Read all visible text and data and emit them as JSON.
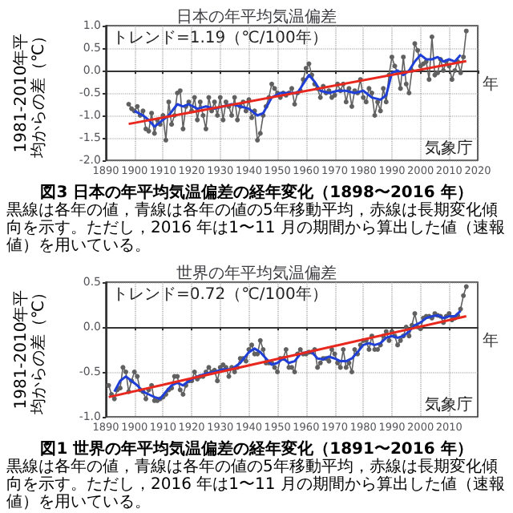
{
  "chart_data": [
    {
      "type": "line",
      "title": "日本の年平均気温偏差",
      "xlabel": "年",
      "ylabel": "1981-2010年平均からの差（℃）",
      "xlim": [
        1890,
        2020
      ],
      "xticks": [
        1890,
        1900,
        1910,
        1920,
        1930,
        1940,
        1950,
        1960,
        1970,
        1980,
        1990,
        2000,
        2010,
        2020
      ],
      "ylim": [
        -2,
        1
      ],
      "yticks": [
        {
          "value": -2,
          "label": "-2.0"
        },
        {
          "value": -1.5,
          "label": "-1.5"
        },
        {
          "value": -1,
          "label": "-1.0"
        },
        {
          "value": -0.5,
          "label": "-0.5"
        },
        {
          "value": 0,
          "label": "0.0"
        },
        {
          "value": 0.5,
          "label": "0.5"
        },
        {
          "value": 1,
          "label": "1.0"
        }
      ],
      "grid": true,
      "annotations": [
        "トレンド=1.19（℃/100年）",
        "気象庁",
        "図3 日本の年平均気温偏差の経年変化（1898〜2016 年）",
        "黒線は各年の値，青線は各年の値の5年移動平均，赤線は長期変化傾向を示す。ただし，2016 年は1〜11 月の期間から算出した値（速報値）を用いている。"
      ],
      "series": [
        {
          "color": "#606060",
          "marker": "circle",
          "x": [
            1898,
            1899,
            1900,
            1901,
            1902,
            1903,
            1904,
            1905,
            1906,
            1907,
            1908,
            1909,
            1910,
            1911,
            1912,
            1913,
            1914,
            1915,
            1916,
            1917,
            1918,
            1919,
            1920,
            1921,
            1922,
            1923,
            1924,
            1925,
            1926,
            1927,
            1928,
            1929,
            1930,
            1931,
            1932,
            1933,
            1934,
            1935,
            1936,
            1937,
            1938,
            1939,
            1940,
            1941,
            1942,
            1943,
            1944,
            1945,
            1946,
            1947,
            1948,
            1949,
            1950,
            1951,
            1952,
            1953,
            1954,
            1955,
            1956,
            1957,
            1958,
            1959,
            1960,
            1961,
            1962,
            1963,
            1964,
            1965,
            1966,
            1967,
            1968,
            1969,
            1970,
            1971,
            1972,
            1973,
            1974,
            1975,
            1976,
            1977,
            1978,
            1979,
            1980,
            1981,
            1982,
            1983,
            1984,
            1985,
            1986,
            1987,
            1988,
            1989,
            1990,
            1991,
            1992,
            1993,
            1994,
            1995,
            1996,
            1997,
            1998,
            1999,
            2000,
            2001,
            2002,
            2003,
            2004,
            2005,
            2006,
            2007,
            2008,
            2009,
            2010,
            2011,
            2012,
            2013,
            2014,
            2015,
            2016
          ],
          "values": [
            -0.75,
            -0.85,
            -0.9,
            -0.8,
            -1.0,
            -0.9,
            -1.3,
            -1.35,
            -0.95,
            -1.4,
            -1.1,
            -1.2,
            -1.0,
            -1.55,
            -0.7,
            -1.2,
            -1.0,
            -0.5,
            -0.45,
            -1.3,
            -0.8,
            -0.7,
            -0.9,
            -0.6,
            -1.1,
            -0.7,
            -1.0,
            -1.3,
            -0.6,
            -0.9,
            -0.7,
            -1.0,
            -0.6,
            -1.1,
            -0.7,
            -0.8,
            -1.0,
            -0.6,
            -1.1,
            -0.8,
            -0.7,
            -0.9,
            -0.65,
            -1.05,
            -0.9,
            -1.55,
            -1.4,
            -1.0,
            -0.8,
            -0.6,
            -0.3,
            -0.4,
            -0.5,
            -0.6,
            -0.5,
            -0.55,
            -0.5,
            -0.4,
            -0.75,
            -0.5,
            -0.45,
            -0.2,
            0.05,
            0.15,
            -0.1,
            -0.3,
            -0.4,
            -0.6,
            -0.35,
            -0.5,
            -0.45,
            -0.6,
            -0.55,
            -0.3,
            -0.45,
            -0.3,
            -0.7,
            -0.4,
            -0.8,
            -0.45,
            -0.5,
            -0.2,
            -0.6,
            -0.7,
            -0.4,
            -0.5,
            -1.0,
            -0.7,
            -0.9,
            -0.4,
            -0.7,
            -0.1,
            0.3,
            0.1,
            -0.05,
            -0.4,
            0.3,
            -0.3,
            -0.5,
            0.0,
            0.6,
            0.45,
            0.1,
            0.15,
            0.2,
            -0.2,
            0.75,
            -0.1,
            -0.05,
            0.25,
            0.0,
            0.2,
            0.1,
            -0.2,
            0.0,
            0.2,
            -0.05,
            0.3,
            0.88
          ]
        },
        {
          "color": "#1f3fd6",
          "marker": "none",
          "x": [
            1900,
            1903,
            1905,
            1907,
            1909,
            1912,
            1915,
            1917,
            1919,
            1922,
            1925,
            1928,
            1931,
            1934,
            1937,
            1940,
            1943,
            1945,
            1948,
            1951,
            1954,
            1957,
            1959,
            1961,
            1963,
            1965,
            1968,
            1971,
            1974,
            1977,
            1980,
            1983,
            1986,
            1988,
            1990,
            1992,
            1994,
            1996,
            1998,
            2000,
            2002,
            2004,
            2006,
            2008,
            2010,
            2012,
            2014
          ],
          "values": [
            -0.9,
            -1.0,
            -1.1,
            -1.25,
            -1.15,
            -1.0,
            -0.75,
            -0.8,
            -0.75,
            -0.85,
            -0.8,
            -0.85,
            -0.8,
            -0.75,
            -0.8,
            -0.85,
            -1.0,
            -0.95,
            -0.6,
            -0.5,
            -0.5,
            -0.5,
            -0.3,
            -0.1,
            -0.25,
            -0.45,
            -0.5,
            -0.45,
            -0.45,
            -0.5,
            -0.45,
            -0.6,
            -0.65,
            -0.55,
            -0.05,
            0.0,
            -0.1,
            0.0,
            0.2,
            0.35,
            0.25,
            0.25,
            0.3,
            0.2,
            0.25,
            0.2,
            0.35
          ]
        },
        {
          "color": "#e8281e",
          "marker": "none",
          "x": [
            1898,
            2016
          ],
          "values": [
            -1.19,
            0.21
          ]
        }
      ]
    },
    {
      "type": "line",
      "title": "世界の年平均気温偏差",
      "xlabel": "年",
      "ylabel": "1981-2010年平均からの差（℃）",
      "xlim": [
        1890,
        2020
      ],
      "xticks": [
        1890,
        1900,
        1910,
        1920,
        1930,
        1940,
        1950,
        1960,
        1970,
        1980,
        1990,
        2000,
        2010
      ],
      "ylim": [
        -1,
        0.5
      ],
      "yticks": [
        {
          "value": -1,
          "label": "-1.0"
        },
        {
          "value": -0.5,
          "label": "-0.5"
        },
        {
          "value": 0,
          "label": "0.0"
        },
        {
          "value": 0.5,
          "label": "0.5"
        }
      ],
      "grid": true,
      "annotations": [
        "トレンド=0.72（℃/100年）",
        "気象庁",
        "図1 世界の年平均気温偏差の経年変化（1891〜2016 年）",
        "黒線は各年の値，青線は各年の値の5年移動平均，赤線は長期変化傾向を示す。ただし，2016 年は1〜11 月の期間から算出した値（速報値）を用いている。"
      ],
      "series": [
        {
          "color": "#606060",
          "marker": "circle",
          "x": [
            1891,
            1892,
            1893,
            1894,
            1895,
            1896,
            1897,
            1898,
            1899,
            1900,
            1901,
            1902,
            1903,
            1904,
            1905,
            1906,
            1907,
            1908,
            1909,
            1910,
            1911,
            1912,
            1913,
            1914,
            1915,
            1916,
            1917,
            1918,
            1919,
            1920,
            1921,
            1922,
            1923,
            1924,
            1925,
            1926,
            1927,
            1928,
            1929,
            1930,
            1931,
            1932,
            1933,
            1934,
            1935,
            1936,
            1937,
            1938,
            1939,
            1940,
            1941,
            1942,
            1943,
            1944,
            1945,
            1946,
            1947,
            1948,
            1949,
            1950,
            1951,
            1952,
            1953,
            1954,
            1955,
            1956,
            1957,
            1958,
            1959,
            1960,
            1961,
            1962,
            1963,
            1964,
            1965,
            1966,
            1967,
            1968,
            1969,
            1970,
            1971,
            1972,
            1973,
            1974,
            1975,
            1976,
            1977,
            1978,
            1979,
            1980,
            1981,
            1982,
            1983,
            1984,
            1985,
            1986,
            1987,
            1988,
            1989,
            1990,
            1991,
            1992,
            1993,
            1994,
            1995,
            1996,
            1997,
            1998,
            1999,
            2000,
            2001,
            2002,
            2003,
            2004,
            2005,
            2006,
            2007,
            2008,
            2009,
            2010,
            2011,
            2012,
            2013,
            2014,
            2015,
            2016
          ],
          "values": [
            -0.65,
            -0.75,
            -0.8,
            -0.7,
            -0.68,
            -0.45,
            -0.5,
            -0.72,
            -0.6,
            -0.5,
            -0.55,
            -0.7,
            -0.72,
            -0.8,
            -0.7,
            -0.65,
            -0.82,
            -0.82,
            -0.8,
            -0.78,
            -0.75,
            -0.7,
            -0.68,
            -0.55,
            -0.55,
            -0.7,
            -0.75,
            -0.65,
            -0.6,
            -0.6,
            -0.5,
            -0.58,
            -0.55,
            -0.55,
            -0.5,
            -0.45,
            -0.5,
            -0.48,
            -0.6,
            -0.45,
            -0.42,
            -0.45,
            -0.55,
            -0.45,
            -0.5,
            -0.45,
            -0.35,
            -0.35,
            -0.38,
            -0.25,
            -0.2,
            -0.3,
            -0.3,
            -0.15,
            -0.25,
            -0.4,
            -0.4,
            -0.4,
            -0.45,
            -0.5,
            -0.35,
            -0.35,
            -0.25,
            -0.45,
            -0.45,
            -0.5,
            -0.3,
            -0.25,
            -0.3,
            -0.3,
            -0.28,
            -0.28,
            -0.25,
            -0.45,
            -0.4,
            -0.35,
            -0.35,
            -0.38,
            -0.25,
            -0.3,
            -0.4,
            -0.45,
            -0.25,
            -0.45,
            -0.4,
            -0.5,
            -0.25,
            -0.3,
            -0.2,
            -0.15,
            -0.15,
            -0.25,
            -0.1,
            -0.25,
            -0.25,
            -0.2,
            -0.1,
            -0.05,
            -0.15,
            -0.05,
            -0.1,
            -0.2,
            -0.15,
            -0.1,
            0.0,
            -0.1,
            0.02,
            0.15,
            0.0,
            -0.02,
            0.1,
            0.12,
            0.12,
            0.1,
            0.15,
            0.13,
            0.12,
            0.05,
            0.12,
            0.15,
            0.08,
            0.1,
            0.13,
            0.2,
            0.35,
            0.45
          ]
        },
        {
          "color": "#1f3fd6",
          "marker": "none",
          "x": [
            1893,
            1895,
            1897,
            1899,
            1901,
            1903,
            1905,
            1907,
            1909,
            1911,
            1913,
            1915,
            1917,
            1919,
            1922,
            1925,
            1928,
            1931,
            1934,
            1937,
            1940,
            1942,
            1944,
            1946,
            1948,
            1950,
            1952,
            1954,
            1956,
            1958,
            1960,
            1962,
            1964,
            1966,
            1968,
            1970,
            1972,
            1974,
            1976,
            1978,
            1980,
            1982,
            1984,
            1986,
            1988,
            1990,
            1992,
            1994,
            1996,
            1998,
            2000,
            2002,
            2004,
            2006,
            2008,
            2010,
            2012,
            2014
          ],
          "values": [
            -0.72,
            -0.6,
            -0.55,
            -0.6,
            -0.65,
            -0.72,
            -0.75,
            -0.78,
            -0.8,
            -0.72,
            -0.65,
            -0.62,
            -0.65,
            -0.6,
            -0.55,
            -0.52,
            -0.5,
            -0.47,
            -0.47,
            -0.4,
            -0.28,
            -0.24,
            -0.28,
            -0.35,
            -0.42,
            -0.4,
            -0.35,
            -0.4,
            -0.38,
            -0.3,
            -0.28,
            -0.28,
            -0.35,
            -0.36,
            -0.33,
            -0.35,
            -0.38,
            -0.38,
            -0.35,
            -0.28,
            -0.2,
            -0.18,
            -0.2,
            -0.18,
            -0.12,
            -0.1,
            -0.12,
            -0.1,
            -0.05,
            0.02,
            0.05,
            0.1,
            0.12,
            0.13,
            0.1,
            0.12,
            0.12,
            0.18
          ]
        },
        {
          "color": "#e8281e",
          "marker": "none",
          "x": [
            1891,
            2016
          ],
          "values": [
            -0.78,
            0.12
          ]
        }
      ]
    }
  ]
}
